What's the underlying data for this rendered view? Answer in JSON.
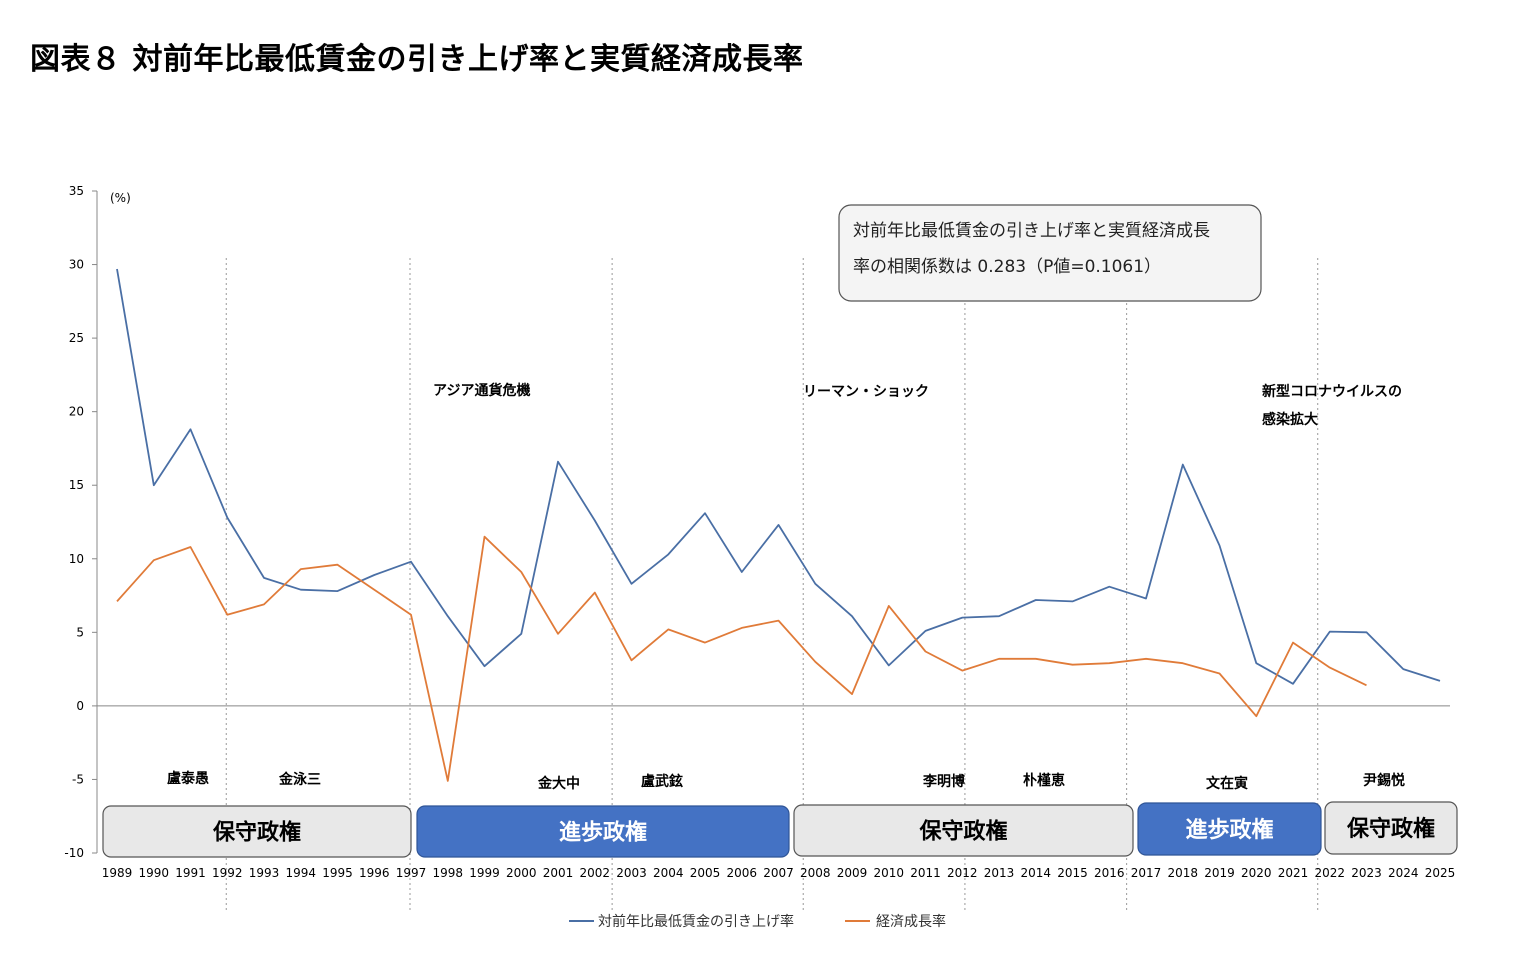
{
  "title": "図表８ 対前年比最低賃金の引き上げ率と実質経済成長率",
  "chart_data": {
    "type": "line",
    "y_unit": "(%)",
    "ylim": [
      -10,
      35
    ],
    "y_ticks": [
      35,
      30,
      25,
      20,
      15,
      10,
      5,
      0,
      -5,
      -10
    ],
    "x": [
      "1989",
      "1990",
      "1991",
      "1992",
      "1993",
      "1994",
      "1995",
      "1996",
      "1997",
      "1998",
      "1999",
      "2000",
      "2001",
      "2002",
      "2003",
      "2004",
      "2005",
      "2006",
      "2007",
      "2008",
      "2009",
      "2010",
      "2011",
      "2012",
      "2013",
      "2014",
      "2015",
      "2016",
      "2017",
      "2018",
      "2019",
      "2020",
      "2021",
      "2022",
      "2023",
      "2024",
      "2025"
    ],
    "series": [
      {
        "name": "対前年比最低賃金の引き上げ率",
        "color": "#4a6fa5",
        "values": [
          29.7,
          15.0,
          18.8,
          12.8,
          8.7,
          7.9,
          7.8,
          8.9,
          9.8,
          6.1,
          2.7,
          4.9,
          16.6,
          12.6,
          8.3,
          10.3,
          13.1,
          9.1,
          12.3,
          8.3,
          6.1,
          2.75,
          5.1,
          6.0,
          6.1,
          7.2,
          7.1,
          8.1,
          7.3,
          16.4,
          10.9,
          2.9,
          1.5,
          5.05,
          5.0,
          2.5,
          1.7
        ]
      },
      {
        "name": "経済成長率",
        "color": "#e07b39",
        "values": [
          7.1,
          9.9,
          10.8,
          6.2,
          6.9,
          9.3,
          9.6,
          7.9,
          6.2,
          -5.1,
          11.5,
          9.1,
          4.9,
          7.7,
          3.1,
          5.2,
          4.3,
          5.3,
          5.8,
          3.0,
          0.8,
          6.8,
          3.7,
          2.4,
          3.2,
          3.2,
          2.8,
          2.9,
          3.2,
          2.9,
          2.2,
          -0.7,
          4.3,
          2.6,
          1.4,
          null,
          null
        ]
      }
    ],
    "correlation_note": {
      "line1": "対前年比最低賃金の引き上げ率と実質経済成長",
      "line2": "率の相関係数は 0.283（P値=0.1061）"
    },
    "events": [
      {
        "text": "アジア通貨危機",
        "year": "1998"
      },
      {
        "text": "リーマン・ショック",
        "year": "2008"
      },
      {
        "text": "新型コロナウイルスの",
        "year": "2020"
      },
      {
        "text": "感染拡大",
        "year": "2020"
      }
    ],
    "presidents": [
      {
        "name": "盧泰愚"
      },
      {
        "name": "金泳三"
      },
      {
        "name": "金大中"
      },
      {
        "name": "盧武鉉"
      },
      {
        "name": "李明博"
      },
      {
        "name": "朴槿恵"
      },
      {
        "name": "文在寅"
      },
      {
        "name": "尹錫悦"
      }
    ],
    "regimes": [
      {
        "label": "保守政権",
        "kind": "conservative"
      },
      {
        "label": "進歩政権",
        "kind": "progressive"
      },
      {
        "label": "保守政権",
        "kind": "conservative"
      },
      {
        "label": "進歩政権",
        "kind": "progressive"
      },
      {
        "label": "保守政権",
        "kind": "conservative"
      }
    ],
    "regime_colors": {
      "conservative_fill": "#e8e8e8",
      "conservative_text": "#000000",
      "progressive_fill": "#4472c4",
      "progressive_text": "#ffffff"
    },
    "grid": false,
    "legend_position": "bottom"
  }
}
